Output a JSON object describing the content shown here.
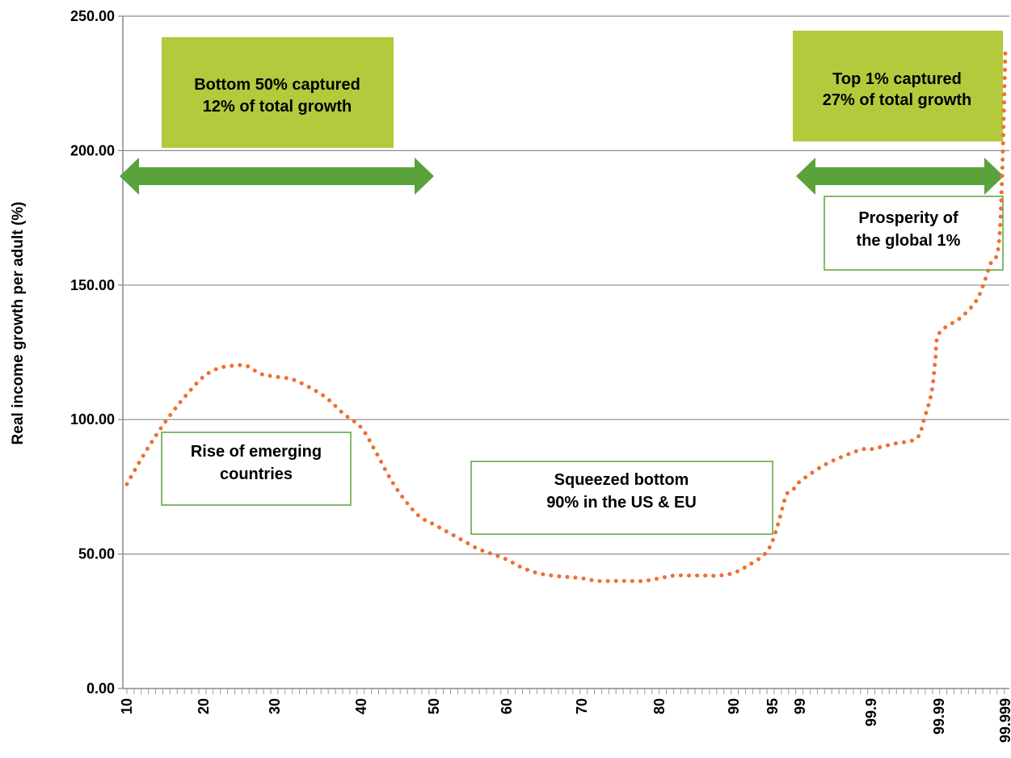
{
  "chart_data": {
    "type": "line",
    "title": "",
    "xlabel": "",
    "ylabel": "Real income growth per adult (%)",
    "ylim": [
      0,
      250
    ],
    "grid": true,
    "line_color": "#f07030",
    "line_style": "dotted",
    "y_ticks": [
      "0.00",
      "50.00",
      "100.00",
      "150.00",
      "200.00",
      "250.00"
    ],
    "x_ticks": [
      "10",
      "20",
      "30",
      "40",
      "50",
      "60",
      "70",
      "80",
      "90",
      "95",
      "99",
      "99.9",
      "99.99",
      "99.999"
    ],
    "x_tick_positions": [
      10,
      20,
      30,
      40,
      50,
      60,
      70,
      80,
      90,
      95,
      99,
      99.9,
      99.99,
      99.999
    ],
    "series": [
      {
        "name": "",
        "points": [
          [
            10,
            76
          ],
          [
            12,
            86
          ],
          [
            14,
            95
          ],
          [
            16,
            103
          ],
          [
            18,
            110
          ],
          [
            20,
            116
          ],
          [
            22,
            119
          ],
          [
            24,
            120
          ],
          [
            26,
            120
          ],
          [
            28,
            117
          ],
          [
            30,
            116
          ],
          [
            32,
            115
          ],
          [
            34,
            112
          ],
          [
            36,
            108
          ],
          [
            38,
            102
          ],
          [
            40,
            97
          ],
          [
            42,
            88
          ],
          [
            44,
            78
          ],
          [
            46,
            70
          ],
          [
            48,
            64
          ],
          [
            50,
            61
          ],
          [
            52,
            58
          ],
          [
            54,
            55
          ],
          [
            56,
            52
          ],
          [
            58,
            50
          ],
          [
            60,
            48
          ],
          [
            62,
            45
          ],
          [
            64,
            43
          ],
          [
            66,
            42
          ],
          [
            68,
            41.5
          ],
          [
            70,
            41
          ],
          [
            72,
            40
          ],
          [
            74,
            40
          ],
          [
            76,
            40
          ],
          [
            78,
            40
          ],
          [
            80,
            41
          ],
          [
            82,
            42
          ],
          [
            84,
            42
          ],
          [
            86,
            42
          ],
          [
            88,
            42
          ],
          [
            90,
            43
          ],
          [
            92,
            46
          ],
          [
            94,
            50
          ],
          [
            95,
            55
          ],
          [
            96,
            63
          ],
          [
            97,
            72
          ],
          [
            98,
            74
          ],
          [
            99,
            77
          ],
          [
            99.3,
            83
          ],
          [
            99.6,
            87
          ],
          [
            99.8,
            89
          ],
          [
            99.9,
            89
          ],
          [
            99.93,
            91
          ],
          [
            99.96,
            93
          ],
          [
            99.97,
            100
          ],
          [
            99.98,
            110
          ],
          [
            99.985,
            122
          ],
          [
            99.99,
            132
          ],
          [
            99.993,
            138
          ],
          [
            99.995,
            144
          ],
          [
            99.996,
            150
          ],
          [
            99.997,
            158
          ],
          [
            99.998,
            163
          ],
          [
            99.9985,
            185
          ],
          [
            99.999,
            237
          ]
        ]
      }
    ],
    "annotations": {
      "bottom50": {
        "line1": "Bottom 50% captured",
        "line2": "12% of total growth"
      },
      "top1": {
        "line1": "Top 1% captured",
        "line2": "27% of total growth"
      },
      "emerging": {
        "line1": "Rise of emerging",
        "line2": "countries"
      },
      "squeezed": {
        "line1": "Squeezed bottom",
        "line2": "90% in the US & EU"
      },
      "prosperity": {
        "line1": "Prosperity of",
        "line2": "the global 1%"
      }
    },
    "box_fill_color": "#b5c93d",
    "box_border_color": "#5aa23a",
    "arrow_color": "#5aa23a"
  }
}
